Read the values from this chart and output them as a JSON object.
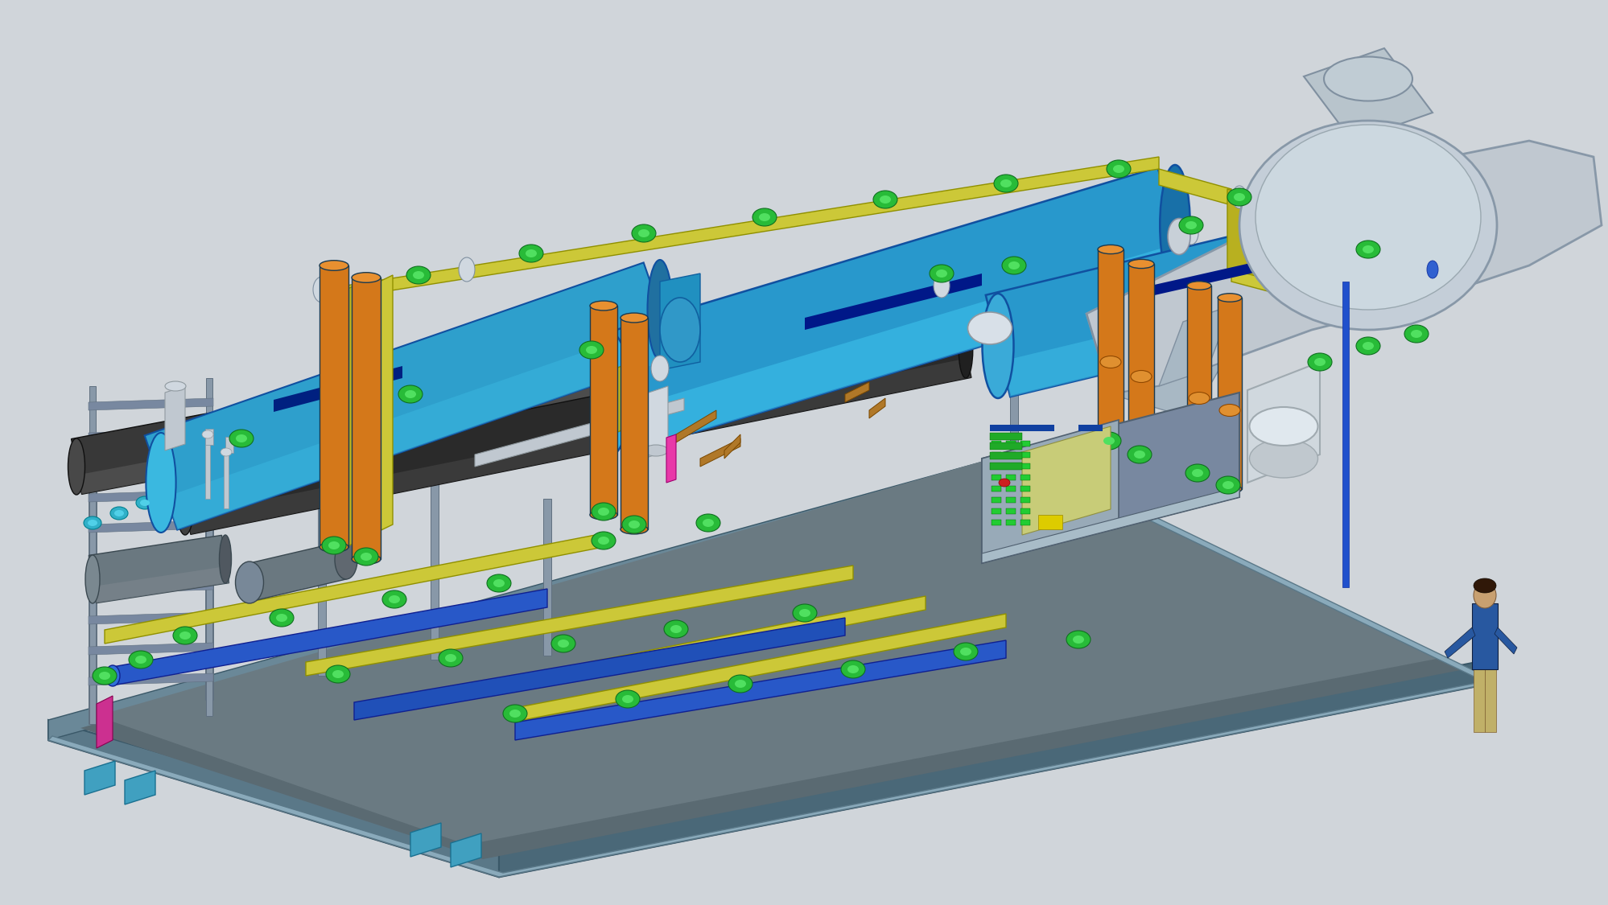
{
  "bg_color": "#d0d5da",
  "colors": {
    "bg": "#d0d5da",
    "skid_top": "#8faab8",
    "skid_front": "#6a8898",
    "skid_side": "#5a7888",
    "skid_floor": "#7a9aaa",
    "skid_dark_floor": "#4a6070",
    "frame": "#8898a8",
    "frame_dark": "#607080",
    "blue_vessel": "#2e9fcc",
    "blue_vessel_top": "#3ab8e0",
    "blue_vessel_dark": "#1a70a0",
    "blue_vessel_side": "#206090",
    "orange_pipe": "#d4781a",
    "orange_pipe_top": "#e89030",
    "orange_pipe_dark": "#904810",
    "dark_pipe": "#383838",
    "dark_pipe_hi": "#505050",
    "yellow_pipe": "#ccc838",
    "yellow_pipe_dark": "#909000",
    "green_valve": "#28bb38",
    "green_valve_hi": "#50e060",
    "green_valve_dark": "#107020",
    "gray_turbine": "#b8c4cc",
    "gray_turbine_dark": "#8090a0",
    "gray_vessel": "#a0b0b8",
    "blue_pipe": "#2858c8",
    "blue_pipe_dark": "#102090",
    "white_pipe": "#d0d8e0",
    "silver_pipe": "#c0c8d0",
    "copper_pipe": "#b07828",
    "pink_pipe": "#e838a8",
    "panel_body": "#8898a8",
    "panel_face": "#98aab8",
    "panel_top": "#a8bac8",
    "cyan_accent": "#38a8c8",
    "teal_accent": "#40a0b8",
    "person_body": "#2858a0",
    "person_skin": "#c8a070",
    "person_hair": "#301808",
    "person_pants": "#c0b068"
  }
}
